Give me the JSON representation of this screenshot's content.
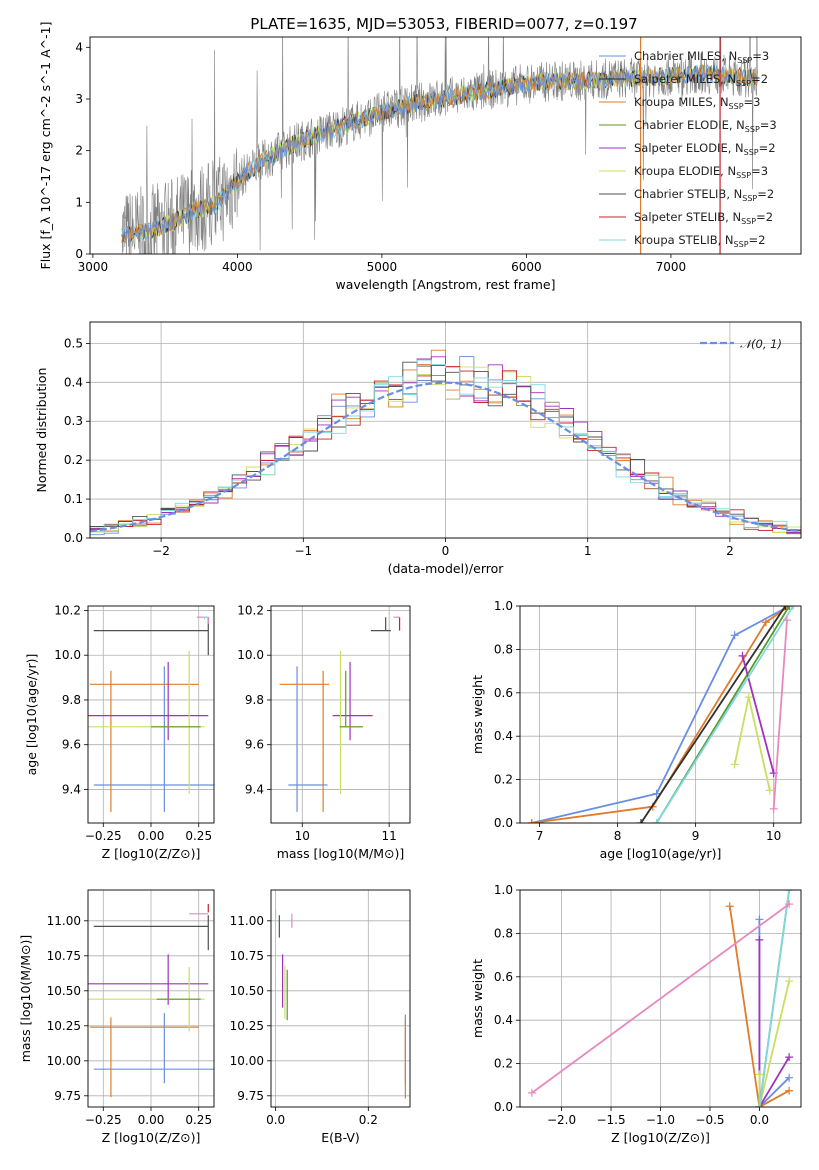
{
  "page_title": "PLATE=1635, MJD=53053, FIBERID=0077, z=0.197",
  "colors": {
    "Chabrier MILES": "#6a8fe0",
    "Salpeter MILES": "#2f2f2f",
    "Kroupa MILES": "#e07b2a",
    "Chabrier ELODIE": "#5a9a2a",
    "Salpeter ELODIE": "#a030c0",
    "Kroupa ELODIE": "#c8e060",
    "Chabrier STELIB": "#505050",
    "Salpeter STELIB": "#c8202a",
    "Kroupa STELIB": "#80d8e0",
    "gauss": "#6a8fe0",
    "extra": "#e888c0"
  },
  "chart_data": [
    {
      "id": "spectrum",
      "type": "line",
      "title": "PLATE=1635, MJD=53053, FIBERID=0077, z=0.197",
      "xlabel": "wavelength [Angstrom, rest frame]",
      "ylabel": "Flux [f_λ 10^-17 erg cm^-2 s^-1 A^-1]",
      "xlim": [
        2980,
        7900
      ],
      "ylim": [
        0,
        4.2
      ],
      "xticks": [
        "3000",
        "4000",
        "5000",
        "6000",
        "7000"
      ],
      "yticks": [
        "0",
        "1",
        "2",
        "3",
        "4"
      ],
      "legend_position": "upper right",
      "legend": [
        {
          "name": "Chabrier MILES",
          "n": "3"
        },
        {
          "name": "Salpeter MILES",
          "n": "2"
        },
        {
          "name": "Kroupa MILES",
          "n": "3"
        },
        {
          "name": "Chabrier ELODIE",
          "n": "3"
        },
        {
          "name": "Salpeter ELODIE",
          "n": "2"
        },
        {
          "name": "Kroupa ELODIE",
          "n": "3"
        },
        {
          "name": "Chabrier STELIB",
          "n": "2"
        },
        {
          "name": "Salpeter STELIB",
          "n": "2"
        },
        {
          "name": "Kroupa STELIB",
          "n": "2"
        }
      ],
      "model_continuum": {
        "x": [
          3200,
          3400,
          3550,
          3700,
          3850,
          3950,
          4050,
          4200,
          4400,
          4600,
          4800,
          5000,
          5200,
          5400,
          5600,
          5800,
          6000,
          6200,
          6400,
          6600,
          6800,
          7000,
          7200,
          7400,
          7600
        ],
        "y": [
          0.35,
          0.45,
          0.6,
          0.85,
          0.95,
          1.25,
          1.55,
          1.85,
          2.15,
          2.35,
          2.55,
          2.75,
          2.9,
          3.0,
          3.1,
          3.2,
          3.3,
          3.35,
          3.35,
          3.4,
          3.4,
          3.45,
          3.5,
          3.45,
          3.4
        ]
      }
    },
    {
      "id": "residuals",
      "type": "histogram",
      "xlabel": "(data-model)/error",
      "ylabel": "Normed distribution",
      "xlim": [
        -2.5,
        2.5
      ],
      "ylim": [
        0,
        0.555
      ],
      "xticks": [
        "−2",
        "−1",
        "0",
        "1",
        "2"
      ],
      "yticks": [
        "0.0",
        "0.1",
        "0.2",
        "0.3",
        "0.4",
        "0.5"
      ],
      "legend": [
        "𝒩(0, 1)"
      ],
      "legend_position": "upper right",
      "bin_width": 0.1
    },
    {
      "id": "age-vs-Z",
      "type": "errorbar",
      "xlabel": "Z [log10(Z/Z⊙)]",
      "ylabel": "age  [log10(age/yr)]",
      "xlim": [
        -0.33,
        0.33
      ],
      "ylim": [
        9.25,
        10.22
      ],
      "xticks": [
        "−0.25",
        "0.00",
        "0.25"
      ],
      "yticks": [
        "9.4",
        "9.6",
        "9.8",
        "10.0",
        "10.2"
      ],
      "points": [
        {
          "model": "Chabrier MILES",
          "x": 0.07,
          "y": 9.42,
          "xerr": [
            0.37,
            0.29
          ],
          "yerr": [
            0.12,
            0.53
          ]
        },
        {
          "model": "Kroupa MILES",
          "x": -0.21,
          "y": 9.87,
          "xerr": [
            0.11,
            0.46
          ],
          "yerr": [
            0.57,
            0.06
          ]
        },
        {
          "model": "Salpeter ELODIE",
          "x": 0.09,
          "y": 9.73,
          "xerr": [
            0.43,
            0.21
          ],
          "yerr": [
            0.11,
            0.24
          ]
        },
        {
          "model": "Kroupa ELODIE",
          "x": 0.2,
          "y": 9.68,
          "xerr": [
            0.54,
            0.08
          ],
          "yerr": [
            0.3,
            0.34
          ]
        },
        {
          "model": "Chabrier ELODIE",
          "x": 0.21,
          "y": 9.68,
          "xerr": [
            0.21,
            0.05
          ],
          "yerr": [
            0.0,
            0.0
          ]
        },
        {
          "model": "Chabrier STELIB",
          "x": 0.3,
          "y": 10.11,
          "xerr": [
            0.6,
            0.0
          ],
          "yerr": [
            0.11,
            0.06
          ]
        },
        {
          "model": "extra",
          "x": 0.3,
          "y": 10.17,
          "xerr": [
            0.06,
            0.0
          ],
          "yerr": [
            0.03,
            0.0
          ]
        },
        {
          "model": "Kroupa STELIB",
          "x": 0.28,
          "y": 10.17,
          "xerr": [
            0.0,
            0.02
          ],
          "yerr": [
            0.01,
            0.0
          ]
        }
      ]
    },
    {
      "id": "age-vs-mass",
      "type": "errorbar",
      "xlabel": "mass [log10(M/M⊙)]",
      "ylabel": "",
      "xlim": [
        9.64,
        11.24
      ],
      "ylim": [
        9.25,
        10.22
      ],
      "xticks": [
        "10",
        "11"
      ],
      "yticks": [
        "9.4",
        "9.6",
        "9.8",
        "10.0",
        "10.2"
      ],
      "points": [
        {
          "model": "Chabrier MILES",
          "x": 9.94,
          "y": 9.42,
          "xerr": [
            0.1,
            0.35
          ],
          "yerr": [
            0.12,
            0.53
          ]
        },
        {
          "model": "Kroupa MILES",
          "x": 10.24,
          "y": 9.87,
          "xerr": [
            0.5,
            0.07
          ],
          "yerr": [
            0.57,
            0.06
          ]
        },
        {
          "model": "Salpeter ELODIE",
          "x": 10.55,
          "y": 9.73,
          "xerr": [
            0.2,
            0.26
          ],
          "yerr": [
            0.11,
            0.24
          ]
        },
        {
          "model": "Kroupa ELODIE",
          "x": 10.44,
          "y": 9.68,
          "xerr": [
            0.01,
            0.23
          ],
          "yerr": [
            0.3,
            0.34
          ]
        },
        {
          "model": "Chabrier ELODIE",
          "x": 10.5,
          "y": 9.68,
          "xerr": [
            0.07,
            0.2
          ],
          "yerr": [
            0.0,
            0.25
          ]
        },
        {
          "model": "Chabrier STELIB",
          "x": 10.96,
          "y": 10.11,
          "xerr": [
            0.17,
            0.06
          ],
          "yerr": [
            0.0,
            0.06
          ]
        },
        {
          "model": "Salpeter STELIB",
          "x": 11.12,
          "y": 10.17,
          "xerr": [
            0.0,
            0.0
          ],
          "yerr": [
            0.06,
            0.0
          ]
        },
        {
          "model": "extra",
          "x": 11.05,
          "y": 10.17,
          "xerr": [
            0.0,
            0.07
          ],
          "yerr": [
            0.0,
            0.0
          ]
        }
      ]
    },
    {
      "id": "mass-weight-vs-age",
      "type": "line",
      "xlabel": "age  [log10(age/yr)]",
      "ylabel": "mass weight",
      "xlim": [
        6.75,
        10.35
      ],
      "ylim": [
        0,
        1
      ],
      "xticks": [
        "7",
        "8",
        "9",
        "10"
      ],
      "yticks": [
        "0.0",
        "0.2",
        "0.4",
        "0.6",
        "0.8",
        "1.0"
      ],
      "series": [
        {
          "model": "Chabrier MILES",
          "x": [
            6.9,
            8.5,
            9.5,
            10.2
          ],
          "y": [
            0.0,
            0.135,
            0.865,
            1.0
          ]
        },
        {
          "model": "Kroupa MILES",
          "x": [
            6.9,
            8.45,
            9.9,
            10.2
          ],
          "y": [
            0.0,
            0.075,
            0.925,
            1.0
          ]
        },
        {
          "model": "Salpeter MILES",
          "x": [
            8.3,
            10.15
          ],
          "y": [
            0.0,
            1.0
          ]
        },
        {
          "model": "Chabrier ELODIE",
          "x": [
            8.5,
            10.2
          ],
          "y": [
            0.0,
            1.0
          ]
        },
        {
          "model": "Kroupa ELODIE",
          "x": [
            9.5,
            9.68,
            9.95
          ],
          "y": [
            0.27,
            0.58,
            0.15
          ]
        },
        {
          "model": "Salpeter ELODIE",
          "x": [
            9.6,
            10.0
          ],
          "y": [
            0.77,
            0.23
          ]
        },
        {
          "model": "Kroupa STELIB",
          "x": [
            8.5,
            10.25
          ],
          "y": [
            0.0,
            1.0
          ]
        },
        {
          "model": "extra",
          "x": [
            10.0,
            10.17
          ],
          "y": [
            0.065,
            0.935
          ]
        }
      ]
    },
    {
      "id": "mass-vs-Z",
      "type": "errorbar",
      "xlabel": "Z [log10(Z/Z⊙)]",
      "ylabel": "mass [log10(M/M⊙)]",
      "xlim": [
        -0.33,
        0.33
      ],
      "ylim": [
        9.67,
        11.22
      ],
      "xticks": [
        "−0.25",
        "0.00",
        "0.25"
      ],
      "yticks": [
        "9.75",
        "10.00",
        "10.25",
        "10.50",
        "10.75",
        "11.00"
      ],
      "points": [
        {
          "model": "Chabrier MILES",
          "x": 0.07,
          "y": 9.94,
          "xerr": [
            0.37,
            0.29
          ],
          "yerr": [
            0.1,
            0.4
          ]
        },
        {
          "model": "Kroupa MILES",
          "x": -0.21,
          "y": 10.24,
          "xerr": [
            0.11,
            0.46
          ],
          "yerr": [
            0.5,
            0.07
          ]
        },
        {
          "model": "Salpeter ELODIE",
          "x": 0.09,
          "y": 10.55,
          "xerr": [
            0.43,
            0.21
          ],
          "yerr": [
            0.15,
            0.21
          ]
        },
        {
          "model": "Kroupa ELODIE",
          "x": 0.2,
          "y": 10.44,
          "xerr": [
            0.54,
            0.08
          ],
          "yerr": [
            0.23,
            0.23
          ]
        },
        {
          "model": "Chabrier ELODIE",
          "x": 0.16,
          "y": 10.44,
          "xerr": [
            0.13,
            0.1
          ],
          "yerr": [
            0.0,
            0.0
          ]
        },
        {
          "model": "Chabrier STELIB",
          "x": 0.3,
          "y": 10.96,
          "xerr": [
            0.6,
            0.0
          ],
          "yerr": [
            0.17,
            0.08
          ]
        },
        {
          "model": "Salpeter STELIB",
          "x": 0.3,
          "y": 11.12,
          "xerr": [
            0.0,
            0.0
          ],
          "yerr": [
            0.06,
            0.0
          ]
        },
        {
          "model": "extra",
          "x": 0.3,
          "y": 11.05,
          "xerr": [
            0.1,
            0.0
          ],
          "yerr": [
            0.0,
            0.0
          ]
        }
      ]
    },
    {
      "id": "mass-vs-EBV",
      "type": "errorbar",
      "xlabel": "E(B-V)",
      "ylabel": "",
      "xlim": [
        -0.01,
        0.29
      ],
      "ylim": [
        9.67,
        11.22
      ],
      "xticks": [
        "0.0",
        "0.2"
      ],
      "yticks": [
        "9.75",
        "10.00",
        "10.25",
        "10.50",
        "10.75",
        "11.00"
      ],
      "points": [
        {
          "model": "Chabrier MILES",
          "x": 0.28,
          "y": 10.1,
          "xerr": [
            0.0,
            0.0
          ],
          "yerr": [
            0.27,
            0.23
          ]
        },
        {
          "model": "Kroupa MILES",
          "x": 0.28,
          "y": 10.1,
          "xerr": [
            0.0,
            0.0
          ],
          "yerr": [
            0.37,
            0.2
          ]
        },
        {
          "model": "Salpeter ELODIE",
          "x": 0.015,
          "y": 10.55,
          "xerr": [
            0.0,
            0.0
          ],
          "yerr": [
            0.17,
            0.21
          ]
        },
        {
          "model": "Kroupa ELODIE",
          "x": 0.02,
          "y": 10.5,
          "xerr": [
            0.0,
            0.0
          ],
          "yerr": [
            0.2,
            0.18
          ]
        },
        {
          "model": "Chabrier ELODIE",
          "x": 0.025,
          "y": 10.44,
          "xerr": [
            0.0,
            0.0
          ],
          "yerr": [
            0.15,
            0.21
          ]
        },
        {
          "model": "Chabrier STELIB",
          "x": 0.008,
          "y": 10.96,
          "xerr": [
            0.0,
            0.0
          ],
          "yerr": [
            0.08,
            0.08
          ]
        },
        {
          "model": "extra",
          "x": 0.035,
          "y": 11.0,
          "xerr": [
            0.0,
            0.0
          ],
          "yerr": [
            0.05,
            0.05
          ]
        },
        {
          "model": "Kroupa STELIB",
          "x": 0.0,
          "y": 11.05,
          "xerr": [
            0.0,
            0.0
          ],
          "yerr": [
            0.03,
            0.03
          ]
        }
      ]
    },
    {
      "id": "mass-weight-vs-Z",
      "type": "line",
      "xlabel": "Z [log10(Z/Z⊙)]",
      "ylabel": "mass weight",
      "xlim": [
        -2.42,
        0.42
      ],
      "ylim": [
        0,
        1
      ],
      "xticks": [
        "−2.0",
        "−1.5",
        "−1.0",
        "−0.5",
        "0.0"
      ],
      "yticks": [
        "0.0",
        "0.2",
        "0.4",
        "0.6",
        "0.8",
        "1.0"
      ],
      "series": [
        {
          "model": "Chabrier MILES",
          "x": [
            0.0,
            0.0,
            0.3
          ],
          "y": [
            0.865,
            0.0,
            0.135
          ]
        },
        {
          "model": "Kroupa MILES",
          "x": [
            -0.3,
            0.0,
            0.3
          ],
          "y": [
            0.925,
            0.0,
            0.075
          ]
        },
        {
          "model": "Salpeter ELODIE",
          "x": [
            0.0,
            0.0,
            0.3
          ],
          "y": [
            0.77,
            0.0,
            0.23
          ]
        },
        {
          "model": "Kroupa ELODIE",
          "x": [
            0.0,
            0.0,
            0.3
          ],
          "y": [
            0.15,
            0.0,
            0.58
          ]
        },
        {
          "model": "Chabrier ELODIE",
          "x": [
            0.0,
            0.3
          ],
          "y": [
            0.0,
            1.0
          ]
        },
        {
          "model": "Kroupa STELIB",
          "x": [
            0.0,
            0.3
          ],
          "y": [
            0.0,
            1.0
          ]
        },
        {
          "model": "extra",
          "x": [
            -2.3,
            0.3
          ],
          "y": [
            0.065,
            0.935
          ]
        }
      ]
    }
  ]
}
